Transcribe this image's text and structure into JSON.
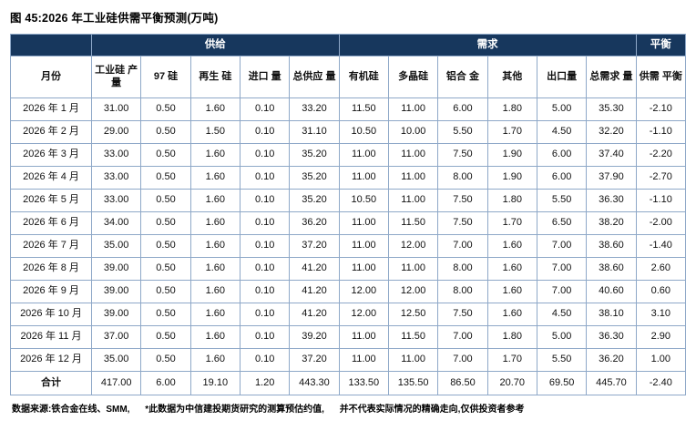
{
  "title": "图 45:2026 年工业硅供需平衡预测(万吨)",
  "colors": {
    "header_bg": "#17375D",
    "header_text": "#FFFFFF",
    "border": "#8EA8C8"
  },
  "table": {
    "group_headers": [
      {
        "label": "",
        "span": 1
      },
      {
        "label": "供给",
        "span": 5
      },
      {
        "label": "需求",
        "span": 6
      },
      {
        "label": "平衡",
        "span": 1
      }
    ],
    "columns": [
      "月份",
      "工业硅 产量",
      "97 硅",
      "再生 硅",
      "进口 量",
      "总供应 量",
      "有机硅",
      "多晶硅",
      "铝合 金",
      "其他",
      "出口量",
      "总需求 量",
      "供需 平衡"
    ],
    "rows": [
      [
        "2026 年 1 月",
        "31.00",
        "0.50",
        "1.60",
        "0.10",
        "33.20",
        "11.50",
        "11.00",
        "6.00",
        "1.80",
        "5.00",
        "35.30",
        "-2.10"
      ],
      [
        "2026 年 2 月",
        "29.00",
        "0.50",
        "1.50",
        "0.10",
        "31.10",
        "10.50",
        "10.00",
        "5.50",
        "1.70",
        "4.50",
        "32.20",
        "-1.10"
      ],
      [
        "2026 年 3 月",
        "33.00",
        "0.50",
        "1.60",
        "0.10",
        "35.20",
        "11.00",
        "11.00",
        "7.50",
        "1.90",
        "6.00",
        "37.40",
        "-2.20"
      ],
      [
        "2026 年 4 月",
        "33.00",
        "0.50",
        "1.60",
        "0.10",
        "35.20",
        "11.00",
        "11.00",
        "8.00",
        "1.90",
        "6.00",
        "37.90",
        "-2.70"
      ],
      [
        "2026 年 5 月",
        "33.00",
        "0.50",
        "1.60",
        "0.10",
        "35.20",
        "10.50",
        "11.00",
        "7.50",
        "1.80",
        "5.50",
        "36.30",
        "-1.10"
      ],
      [
        "2026 年 6 月",
        "34.00",
        "0.50",
        "1.60",
        "0.10",
        "36.20",
        "11.00",
        "11.50",
        "7.50",
        "1.70",
        "6.50",
        "38.20",
        "-2.00"
      ],
      [
        "2026 年 7 月",
        "35.00",
        "0.50",
        "1.60",
        "0.10",
        "37.20",
        "11.00",
        "12.00",
        "7.00",
        "1.60",
        "7.00",
        "38.60",
        "-1.40"
      ],
      [
        "2026 年 8 月",
        "39.00",
        "0.50",
        "1.60",
        "0.10",
        "41.20",
        "11.00",
        "11.00",
        "8.00",
        "1.60",
        "7.00",
        "38.60",
        "2.60"
      ],
      [
        "2026 年 9 月",
        "39.00",
        "0.50",
        "1.60",
        "0.10",
        "41.20",
        "12.00",
        "12.00",
        "8.00",
        "1.60",
        "7.00",
        "40.60",
        "0.60"
      ],
      [
        "2026 年 10 月",
        "39.00",
        "0.50",
        "1.60",
        "0.10",
        "41.20",
        "12.00",
        "12.50",
        "7.50",
        "1.60",
        "4.50",
        "38.10",
        "3.10"
      ],
      [
        "2026 年 11 月",
        "37.00",
        "0.50",
        "1.60",
        "0.10",
        "39.20",
        "11.00",
        "11.50",
        "7.00",
        "1.80",
        "5.00",
        "36.30",
        "2.90"
      ],
      [
        "2026 年 12 月",
        "35.00",
        "0.50",
        "1.60",
        "0.10",
        "37.20",
        "11.00",
        "11.00",
        "7.00",
        "1.70",
        "5.50",
        "36.20",
        "1.00"
      ],
      [
        "合计",
        "417.00",
        "6.00",
        "19.10",
        "1.20",
        "443.30",
        "133.50",
        "135.50",
        "86.50",
        "20.70",
        "69.50",
        "445.70",
        "-2.40"
      ]
    ]
  },
  "footer": {
    "source": "数据来源:铁合金在线、SMM,",
    "note1": "*此数据为中信建投期货研究的测算预估约值,",
    "note2": "并不代表实际情况的精确走向,仅供投资者参考"
  }
}
